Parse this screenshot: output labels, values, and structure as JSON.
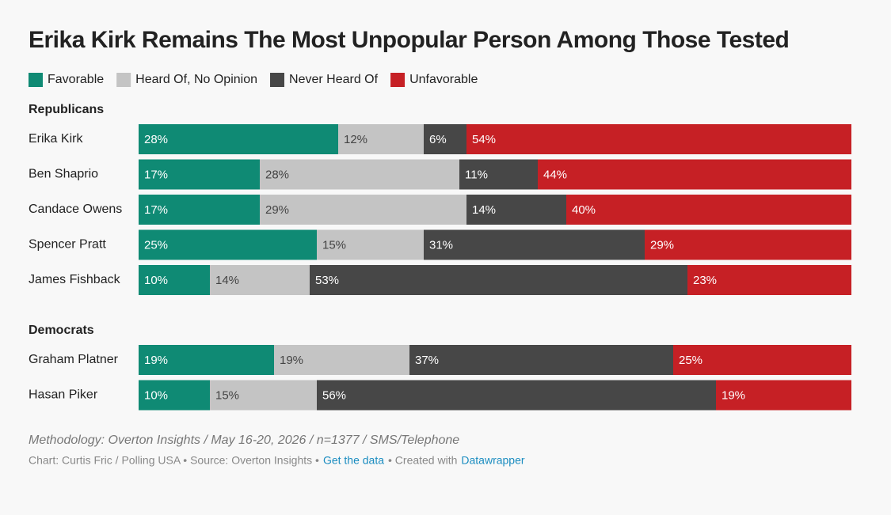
{
  "chart_data": {
    "type": "stacked_bar",
    "title": "Erika Kirk Remains The Most Unpopular Person Among Those Tested",
    "xlim": [
      0,
      100
    ],
    "series": [
      {
        "name": "Favorable",
        "color": "#0f8a74"
      },
      {
        "name": "Heard Of, No Opinion",
        "color": "#c4c4c4"
      },
      {
        "name": "Never Heard Of",
        "color": "#474747"
      },
      {
        "name": "Unfavorable",
        "color": "#c62025"
      }
    ],
    "groups": [
      {
        "label": "Republicans",
        "categories": [
          "Erika Kirk",
          "Ben Shaprio",
          "Candace Owens",
          "Spencer Pratt",
          "James Fishback"
        ],
        "series": [
          {
            "values": [
              28,
              17,
              17,
              25,
              10
            ],
            "value_labels": [
              "28%",
              "17%",
              "17%",
              "25%",
              "10%"
            ]
          },
          {
            "values": [
              12,
              28,
              29,
              15,
              14
            ],
            "value_labels": [
              "12%",
              "28%",
              "29%",
              "15%",
              "14%"
            ]
          },
          {
            "values": [
              6,
              11,
              14,
              31,
              53
            ],
            "value_labels": [
              "6%",
              "11%",
              "14%",
              "31%",
              "53%"
            ]
          },
          {
            "values": [
              54,
              44,
              40,
              29,
              23
            ],
            "value_labels": [
              "54%",
              "44%",
              "40%",
              "29%",
              "23%"
            ]
          }
        ]
      },
      {
        "label": "Democrats",
        "categories": [
          "Graham Platner",
          "Hasan Piker"
        ],
        "series": [
          {
            "values": [
              19,
              10
            ],
            "value_labels": [
              "19%",
              "10%"
            ]
          },
          {
            "values": [
              19,
              15
            ],
            "value_labels": [
              "19%",
              "15%"
            ]
          },
          {
            "values": [
              37,
              56
            ],
            "value_labels": [
              "37%",
              "56%"
            ]
          },
          {
            "values": [
              25,
              19
            ],
            "value_labels": [
              "25%",
              "19%"
            ]
          }
        ]
      }
    ],
    "methodology": "Methodology: Overton Insights / May 16-20, 2026 / n=1377 / SMS/Telephone",
    "footer": {
      "credit": "Chart: Curtis Fric / Polling USA • Source: Overton Insights •",
      "data_link": "Get the data",
      "created_with": "• Created with",
      "tool_link": "Datawrapper"
    }
  }
}
